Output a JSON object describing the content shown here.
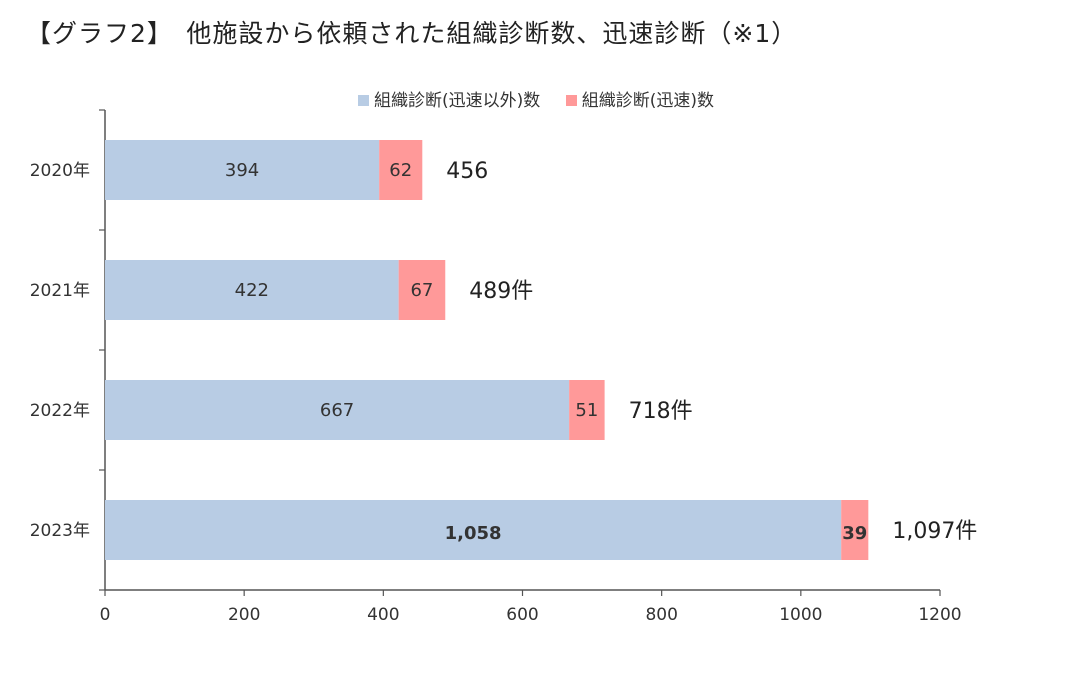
{
  "title": "【グラフ2】　他施設から依頼された組織診断数、迅速診断（※1）",
  "legend": [
    {
      "name": "組織診断(迅速以外)数",
      "color": "#b8cce4"
    },
    {
      "name": "組織診断(迅速)数",
      "color": "#ff9999"
    }
  ],
  "chart_data": {
    "type": "bar",
    "orientation": "horizontal",
    "stacked": true,
    "categories": [
      "2020年",
      "2021年",
      "2022年",
      "2023年"
    ],
    "series": [
      {
        "name": "組織診断(迅速以外)数",
        "values": [
          394,
          422,
          667,
          1058
        ],
        "labels": [
          "394",
          "422",
          "667",
          "1,058"
        ],
        "color": "#b8cce4"
      },
      {
        "name": "組織診断(迅速)数",
        "values": [
          62,
          67,
          51,
          39
        ],
        "labels": [
          "62",
          "67",
          "51",
          "39"
        ],
        "color": "#ff9999"
      }
    ],
    "total_labels": [
      "456",
      "489件",
      "718件",
      "1,097件"
    ],
    "xlim": [
      0,
      1200
    ],
    "xticks": [
      "0",
      "200",
      "400",
      "600",
      "800",
      "1000",
      "1200"
    ],
    "grid": false,
    "legend_position": "top"
  }
}
